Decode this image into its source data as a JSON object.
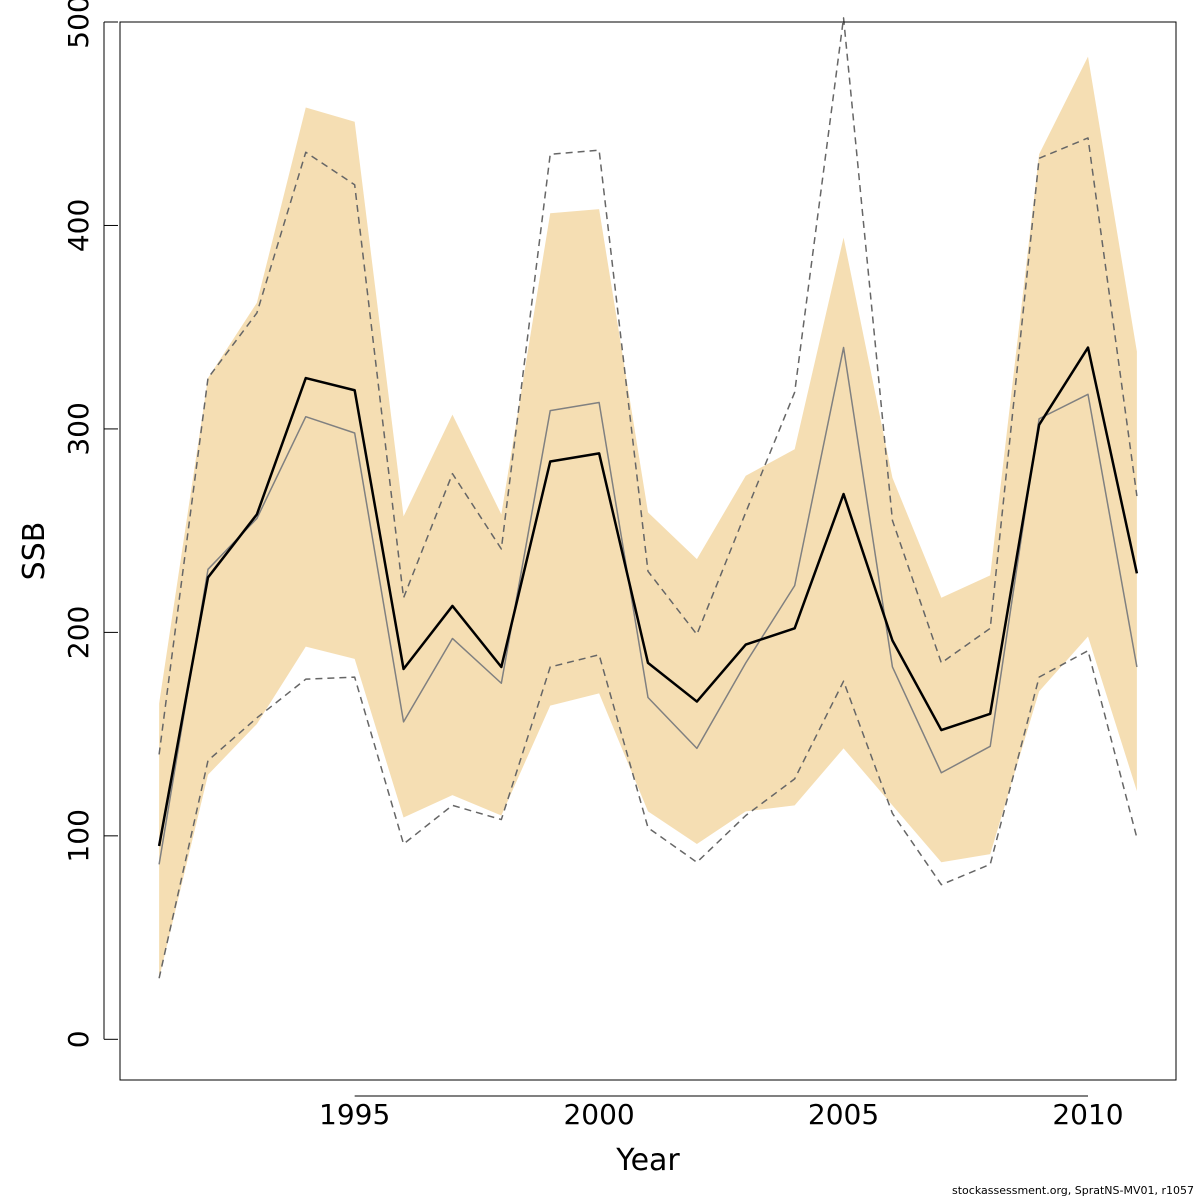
{
  "chart_data": {
    "type": "line",
    "xlabel": "Year",
    "ylabel": "SSB",
    "xlim": [
      1990.2,
      2011.8
    ],
    "ylim": [
      -20,
      500
    ],
    "x_ticks": [
      1995,
      2000,
      2005,
      2010
    ],
    "y_ticks": [
      0,
      100,
      200,
      300,
      400,
      500
    ],
    "grid": false,
    "legend": "none",
    "x": [
      1991,
      1992,
      1993,
      1994,
      1995,
      1996,
      1997,
      1998,
      1999,
      2000,
      2001,
      2002,
      2003,
      2004,
      2005,
      2006,
      2007,
      2008,
      2009,
      2010,
      2011
    ],
    "band": {
      "color": "#F5DEB3",
      "upper": [
        165,
        325,
        362,
        458,
        451,
        257,
        307,
        258,
        406,
        408,
        259,
        236,
        277,
        290,
        394,
        276,
        217,
        228,
        435,
        483,
        338
      ],
      "lower": [
        30,
        130,
        155,
        193,
        187,
        109,
        120,
        110,
        164,
        170,
        112,
        96,
        112,
        115,
        143,
        115,
        87,
        91,
        171,
        198,
        122
      ]
    },
    "series": [
      {
        "color": "#000000",
        "values": [
          95,
          227,
          258,
          325,
          319,
          182,
          213,
          183,
          284,
          288,
          185,
          166,
          194,
          202,
          268,
          196,
          152,
          160,
          302,
          340,
          229
        ]
      },
      {
        "color": "#808080",
        "values": [
          86,
          231,
          256,
          306,
          298,
          156,
          197,
          175,
          309,
          313,
          168,
          143,
          185,
          223,
          340,
          183,
          131,
          144,
          305,
          317,
          183
        ]
      },
      {
        "color": "#666666",
        "dashed": true,
        "values": [
          140,
          325,
          357,
          436,
          420,
          217,
          278,
          241,
          435,
          437,
          230,
          199,
          259,
          318,
          502,
          255,
          185,
          202,
          433,
          443,
          267
        ]
      },
      {
        "color": "#666666",
        "dashed": true,
        "values": [
          30,
          137,
          158,
          177,
          178,
          96,
          115,
          108,
          183,
          189,
          104,
          87,
          110,
          128,
          176,
          111,
          76,
          86,
          178,
          191,
          99
        ]
      }
    ]
  },
  "footer": "stockassessment.org, SpratNS-MV01, r1057"
}
